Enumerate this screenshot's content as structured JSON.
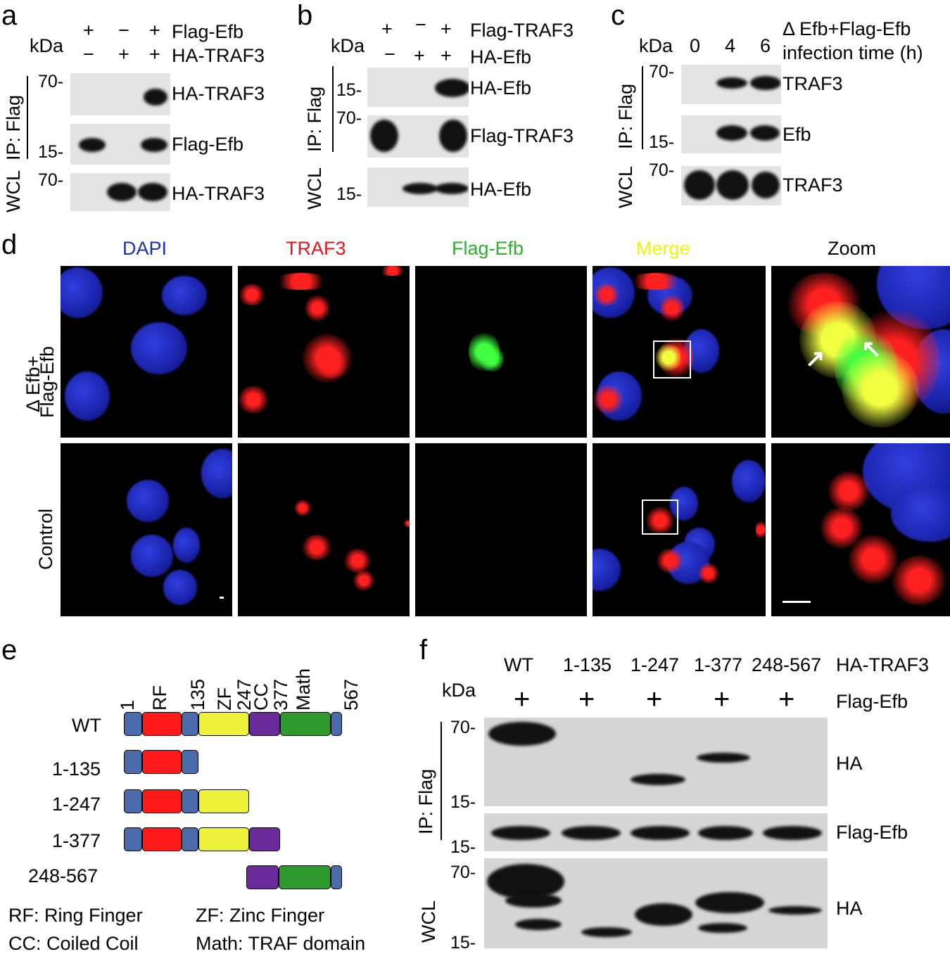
{
  "panel_a": {
    "letter": "a",
    "kda": "kDa",
    "flag_label": "Flag-Efb",
    "ha_label": "HA-TRAF3",
    "flag_signs": [
      "+",
      "−",
      "+"
    ],
    "ha_signs": [
      "−",
      "+",
      "+"
    ],
    "ip_label": "IP: Flag",
    "wcl_label": "WCL",
    "mw": [
      "70-",
      "15-",
      "70-"
    ],
    "blots": [
      "HA-TRAF3",
      "Flag-Efb",
      "HA-TRAF3"
    ]
  },
  "panel_b": {
    "letter": "b",
    "kda": "kDa",
    "flag_label": "Flag-TRAF3",
    "ha_label": "HA-Efb",
    "flag_signs": [
      "+",
      "−",
      "+"
    ],
    "ha_signs": [
      "−",
      "+",
      "+"
    ],
    "ip_label": "IP: Flag",
    "wcl_label": "WCL",
    "mw": [
      "15-",
      "70-",
      "15-"
    ],
    "blots": [
      "HA-Efb",
      "Flag-TRAF3",
      "HA-Efb"
    ]
  },
  "panel_c": {
    "letter": "c",
    "kda": "kDa",
    "times": [
      "0",
      "4",
      "6"
    ],
    "header1": "Δ Efb+Flag-Efb",
    "header2": "infection time (h)",
    "ip_label": "IP: Flag",
    "wcl_label": "WCL",
    "mw": [
      "70-",
      "15-",
      "70-"
    ],
    "blots": [
      "TRAF3",
      "Efb",
      "TRAF3"
    ]
  },
  "panel_d": {
    "letter": "d",
    "columns": [
      "DAPI",
      "TRAF3",
      "Flag-Efb",
      "Merge",
      "Zoom"
    ],
    "column_colors": [
      "#1f2fb0",
      "#e8141b",
      "#2fae2f",
      "#f2f20a",
      "#000000"
    ],
    "row1_line1": "Δ Efb+",
    "row1_line2": "Flag-Efb",
    "row2": "Control"
  },
  "panel_e": {
    "letter": "e",
    "positions": [
      "1",
      "135",
      "247",
      "377",
      "567"
    ],
    "domains": [
      "RF",
      "ZF",
      "CC",
      "Math"
    ],
    "constructs": [
      "WT",
      "1-135",
      "1-247",
      "1-377",
      "248-567"
    ],
    "legend": [
      "RF: Ring Finger",
      "ZF: Zinc Finger",
      "CC: Coiled Coil",
      "Math: TRAF domain"
    ],
    "colors": {
      "linker": "#4a6aaa",
      "rf": "#ff1a1a",
      "zf": "#eef23a",
      "cc": "#6a2a9a",
      "math": "#2e9a2e"
    }
  },
  "panel_f": {
    "letter": "f",
    "lanes": [
      "WT",
      "1-135",
      "1-247",
      "1-377",
      "248-567"
    ],
    "ha_row_label": "HA-TRAF3",
    "kda": "kDa",
    "flag_signs": [
      "+",
      "+",
      "+",
      "+",
      "+"
    ],
    "flag_label": "Flag-Efb",
    "ip_label": "IP: Flag",
    "wcl_label": "WCL",
    "mw": [
      "70-",
      "15-",
      "15-",
      "70-",
      "15-"
    ],
    "blots": [
      "HA",
      "Flag-Efb",
      "HA"
    ]
  }
}
